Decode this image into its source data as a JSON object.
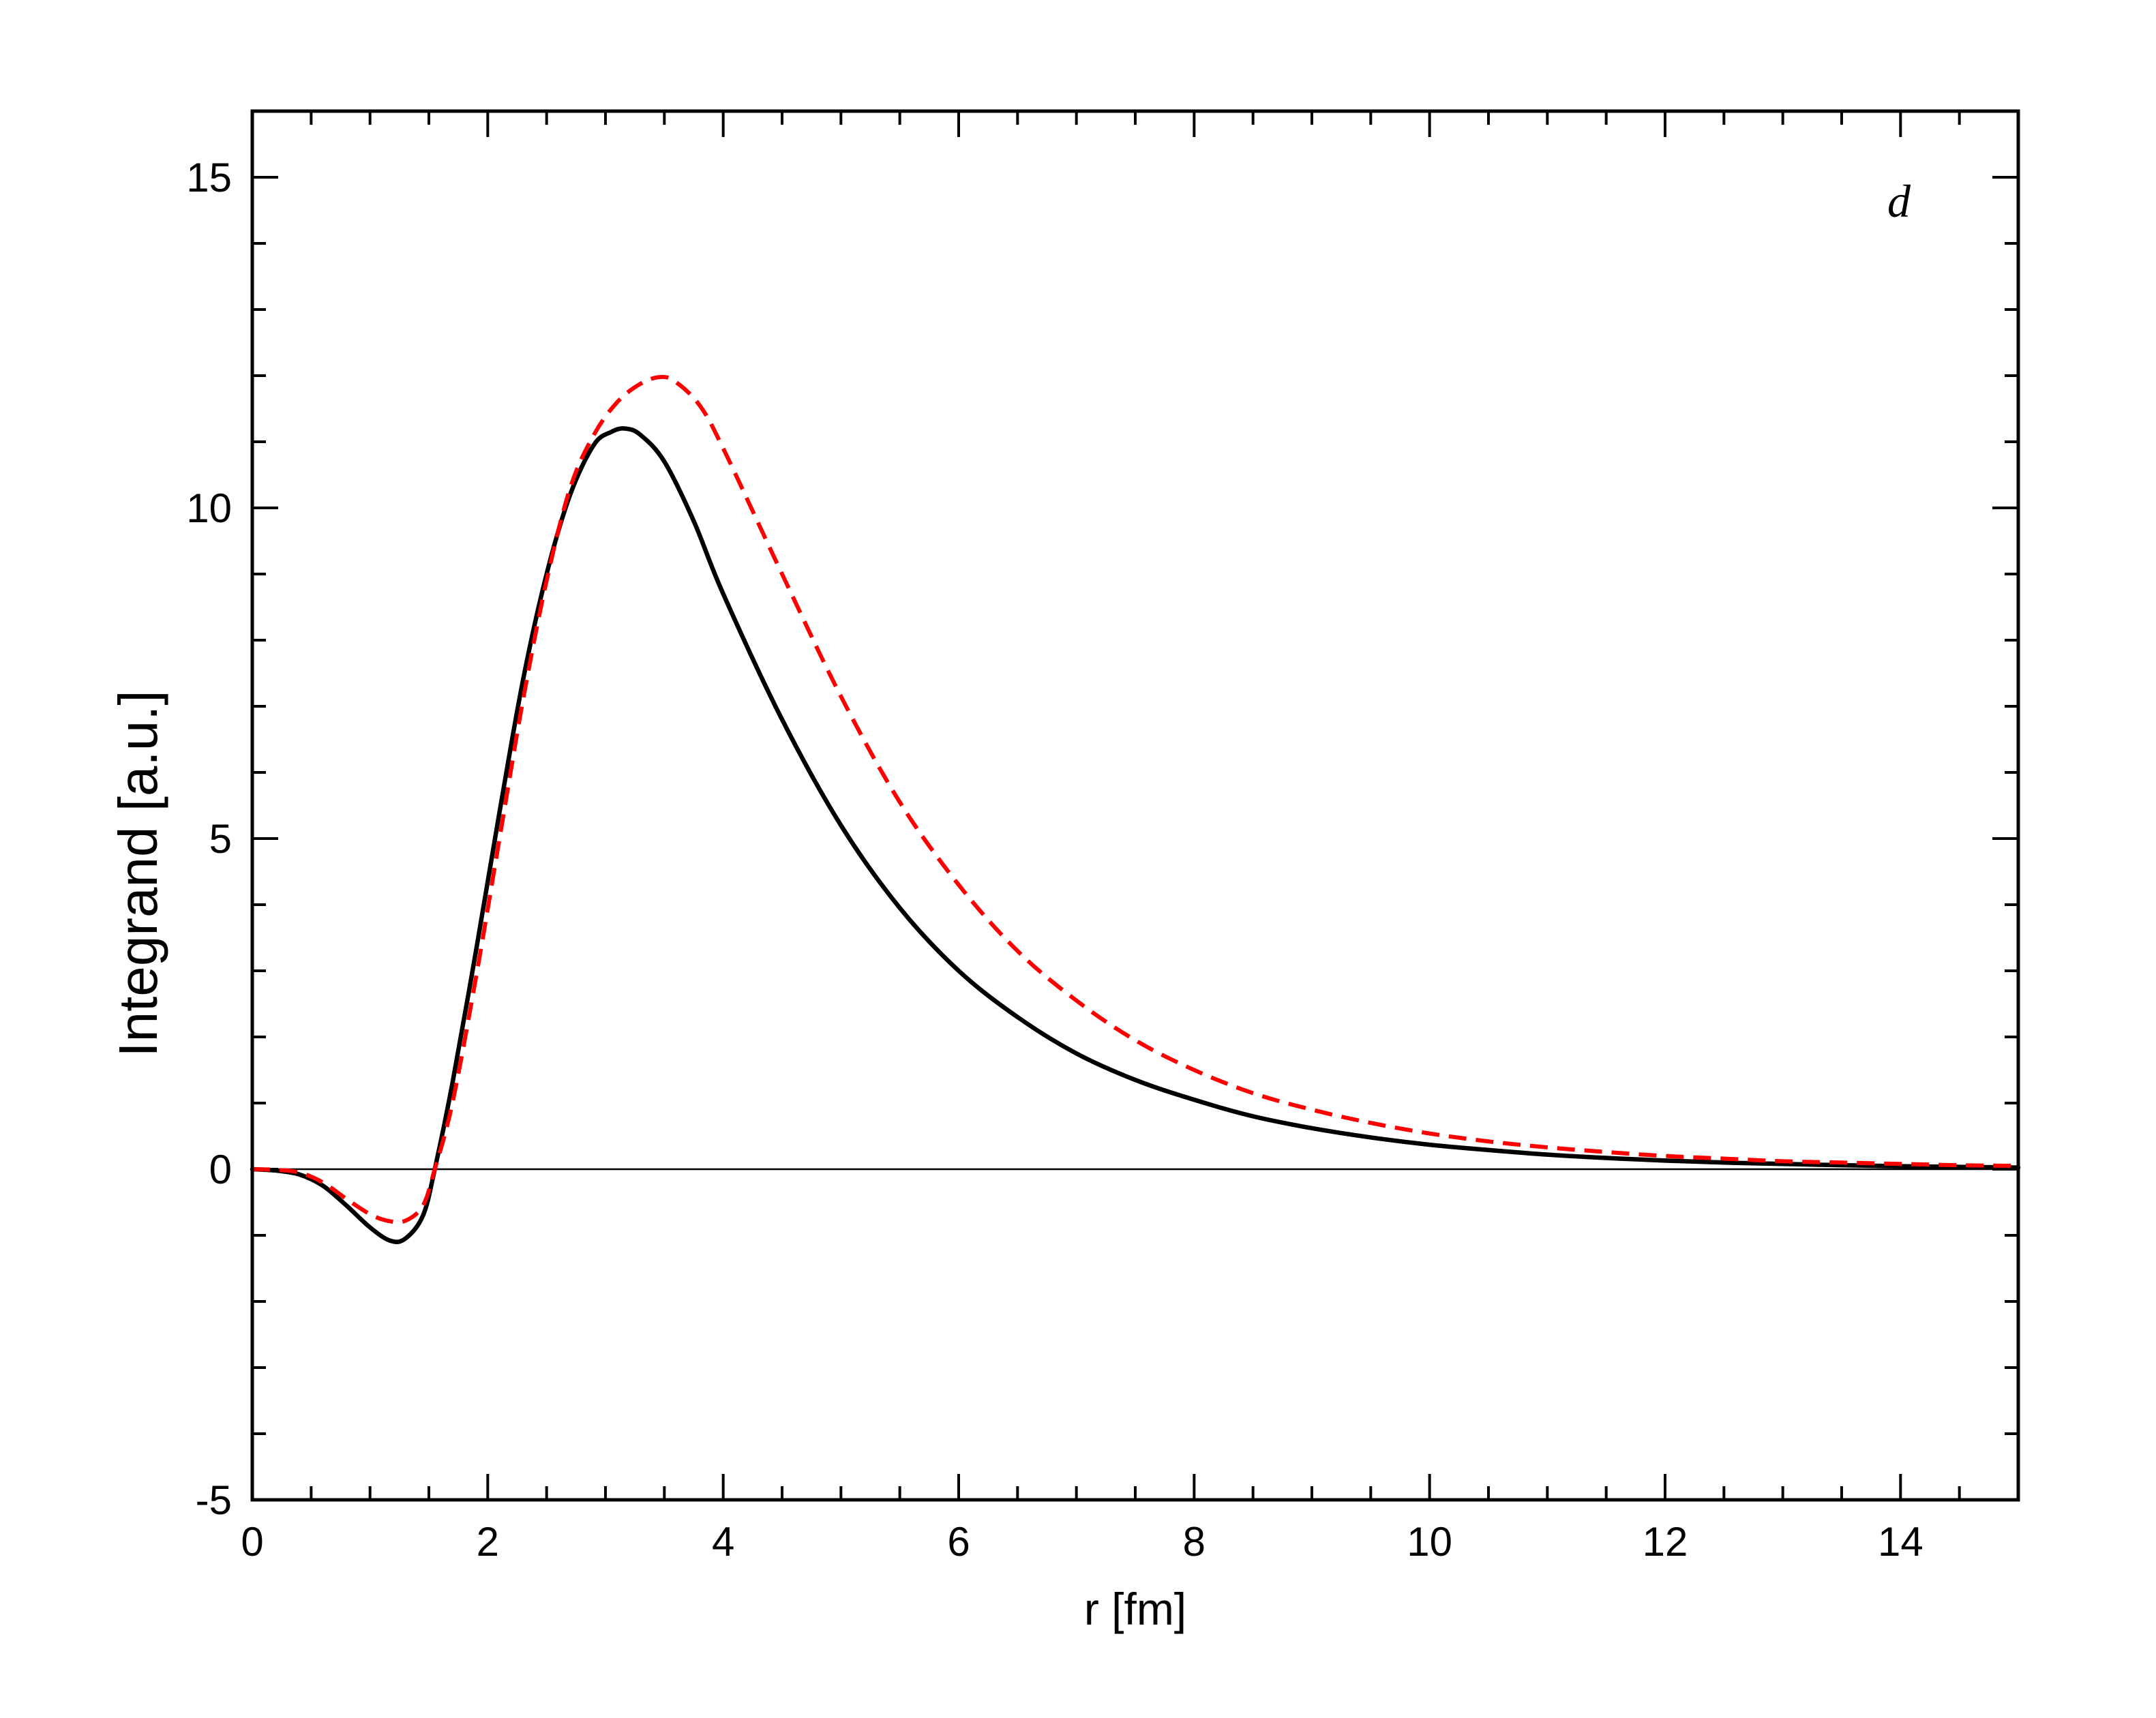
{
  "chart_data": {
    "type": "line",
    "xlabel": "r [fm]",
    "ylabel": "Integrand [a.u.]",
    "panel_label": "d",
    "xlim": [
      0,
      15
    ],
    "ylim": [
      -5,
      16
    ],
    "xticks": [
      0,
      2,
      4,
      6,
      8,
      10,
      12,
      14
    ],
    "xtick_labels": [
      "0",
      "2",
      "4",
      "6",
      "8",
      "10",
      "12",
      "14"
    ],
    "yticks": [
      -5,
      0,
      5,
      10,
      15
    ],
    "ytick_labels": [
      "-5",
      "0",
      "5",
      "10",
      "15"
    ],
    "x_minor_step": 0.5,
    "y_minor_step": 1,
    "zero_line": true,
    "grid": false,
    "colors": {
      "solid": "#000000",
      "dashed": "#ff0000",
      "axis": "#000000"
    },
    "series": [
      {
        "style": "solid",
        "color": "#000000",
        "x": [
          0,
          0.2,
          0.4,
          0.6,
          0.8,
          1.0,
          1.17,
          1.3,
          1.45,
          1.55,
          1.7,
          1.9,
          2.1,
          2.3,
          2.5,
          2.7,
          2.9,
          3.05,
          3.17,
          3.3,
          3.5,
          3.75,
          4.0,
          4.5,
          5.0,
          5.5,
          6.0,
          6.5,
          7.0,
          7.5,
          8.0,
          8.5,
          9.0,
          9.5,
          10.0,
          10.5,
          11.0,
          11.5,
          12.0,
          12.5,
          13.0,
          13.5,
          14.0,
          14.5,
          15.0
        ],
        "y": [
          0,
          -0.02,
          -0.08,
          -0.25,
          -0.55,
          -0.88,
          -1.08,
          -1.05,
          -0.7,
          0.0,
          1.3,
          3.3,
          5.4,
          7.4,
          9.0,
          10.2,
          10.95,
          11.15,
          11.2,
          11.1,
          10.7,
          9.8,
          8.7,
          6.8,
          5.2,
          3.95,
          3.0,
          2.3,
          1.75,
          1.35,
          1.05,
          0.8,
          0.62,
          0.48,
          0.37,
          0.29,
          0.22,
          0.17,
          0.13,
          0.1,
          0.08,
          0.06,
          0.045,
          0.035,
          0.025
        ]
      },
      {
        "style": "dashed",
        "color": "#ff0000",
        "x": [
          0,
          0.2,
          0.4,
          0.6,
          0.8,
          1.0,
          1.15,
          1.3,
          1.45,
          1.55,
          1.7,
          1.9,
          2.1,
          2.3,
          2.5,
          2.7,
          2.9,
          3.1,
          3.3,
          3.47,
          3.6,
          3.8,
          4.0,
          4.5,
          5.0,
          5.5,
          6.0,
          6.5,
          7.0,
          7.5,
          8.0,
          8.5,
          9.0,
          9.5,
          10.0,
          10.5,
          11.0,
          11.5,
          12.0,
          12.5,
          13.0,
          13.5,
          14.0,
          14.5,
          15.0
        ],
        "y": [
          0,
          -0.01,
          -0.05,
          -0.2,
          -0.45,
          -0.68,
          -0.78,
          -0.78,
          -0.55,
          0.0,
          1.0,
          2.9,
          5.0,
          7.1,
          8.9,
          10.3,
          11.1,
          11.6,
          11.88,
          11.98,
          11.9,
          11.55,
          10.9,
          9.0,
          7.15,
          5.55,
          4.3,
          3.3,
          2.55,
          1.95,
          1.5,
          1.15,
          0.9,
          0.7,
          0.54,
          0.42,
          0.33,
          0.26,
          0.2,
          0.16,
          0.12,
          0.1,
          0.08,
          0.06,
          0.05
        ]
      }
    ]
  }
}
